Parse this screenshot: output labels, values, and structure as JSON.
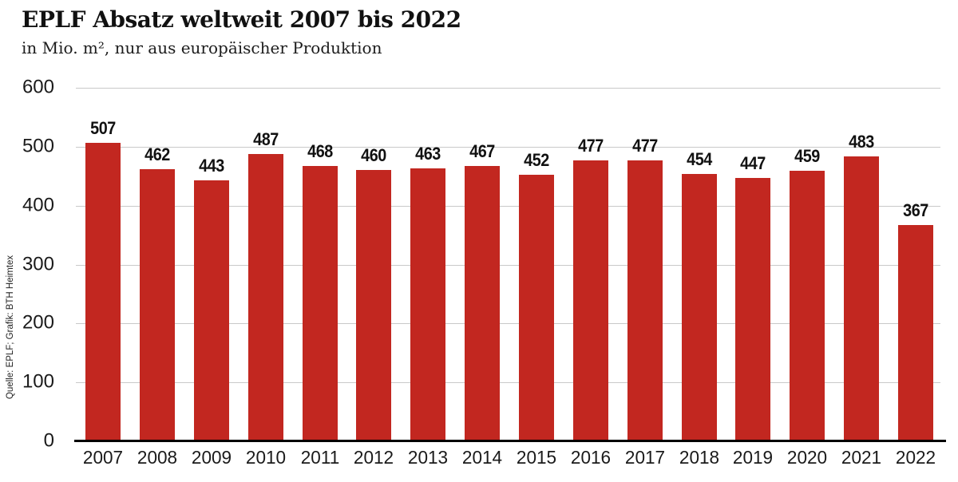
{
  "header": {
    "title": "EPLF Absatz weltweit 2007 bis 2022",
    "subtitle": "in Mio. m², nur aus europäischer Produktion"
  },
  "source_credit": "Quelle: EPLF; Grafik: BTH Heimtex",
  "colors": {
    "bar": "#c22720",
    "grid": "#c9c9c9",
    "axis": "#000000",
    "text": "#1a1a1a"
  },
  "chart_data": {
    "type": "bar",
    "title": "EPLF Absatz weltweit 2007 bis 2022",
    "subtitle": "in Mio. m², nur aus europäischer Produktion",
    "categories": [
      "2007",
      "2008",
      "2009",
      "2010",
      "2011",
      "2012",
      "2013",
      "2014",
      "2015",
      "2016",
      "2017",
      "2018",
      "2019",
      "2020",
      "2021",
      "2022"
    ],
    "values": [
      507,
      462,
      443,
      487,
      468,
      460,
      463,
      467,
      452,
      477,
      477,
      454,
      447,
      459,
      483,
      367
    ],
    "value_labels_shown": true,
    "bar_color": "#c22720",
    "xlabel": "",
    "ylabel": "",
    "ylim": [
      0,
      600
    ],
    "yticks": [
      0,
      100,
      200,
      300,
      400,
      500,
      600
    ],
    "grid": "horizontal",
    "legend": "none"
  }
}
